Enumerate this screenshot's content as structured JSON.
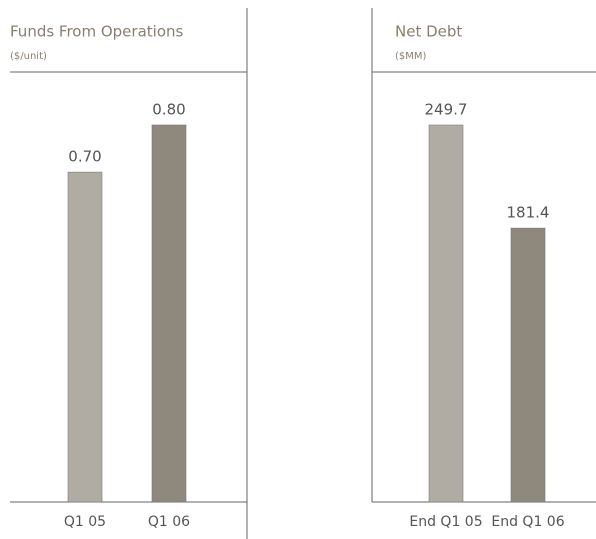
{
  "chart_data": [
    {
      "type": "bar",
      "title": "Funds From Operations",
      "subtitle": "($/unit)",
      "categories": [
        "Q1 05",
        "Q1 06"
      ],
      "values": [
        0.7,
        0.8
      ],
      "value_labels": [
        "0.70",
        "0.80"
      ],
      "colors": [
        "#b1aca3",
        "#8f887c"
      ]
    },
    {
      "type": "bar",
      "title": "Net Debt",
      "subtitle": "($MM)",
      "categories": [
        "End Q1 05",
        "End Q1 06"
      ],
      "values": [
        249.7,
        181.4
      ],
      "colors": [
        "#b1aca3",
        "#8f887c"
      ]
    }
  ]
}
